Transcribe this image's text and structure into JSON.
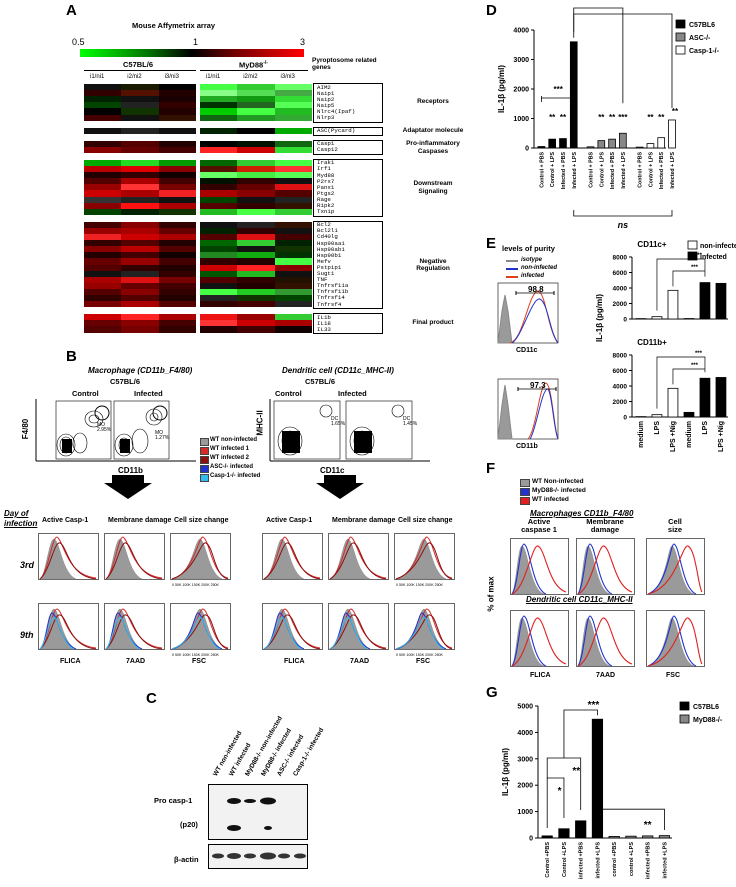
{
  "panel_labels": {
    "a": "A",
    "b": "B",
    "c": "C",
    "d": "D",
    "e": "E",
    "f": "F",
    "g": "G"
  },
  "panel_a": {
    "title": "Mouse Affymetrix array",
    "scale_min": "0.5",
    "scale_mid": "1",
    "scale_max": "3",
    "group_wt": "C57BL/6",
    "group_ko": "MyD88",
    "group_ko_sup": "-/-",
    "columns": [
      "i1/ni1",
      "i2/ni2",
      "i3/ni3",
      "i1/ni1",
      "i2/ni2",
      "i3/ni3"
    ],
    "side_title": "Pyroptosome related genes",
    "categories": [
      {
        "name": "Receptors",
        "genes": [
          "AIM2",
          "Naip1",
          "Naip2",
          "Naip5",
          "Nlrc4(Ipaf)",
          "Nlrp3"
        ],
        "colors": [
          [
            "#111",
            "#1a1a00",
            "#000",
            "#44ff44",
            "#33cc33",
            "#66ff66"
          ],
          [
            "#330000",
            "#551100",
            "#200",
            "#88ff88",
            "#55dd55",
            "#44aa44"
          ],
          [
            "#002200",
            "#111",
            "#1a0000",
            "#22aa22",
            "#119911",
            "#33dd33"
          ],
          [
            "#004400",
            "#222",
            "#330000",
            "#003300",
            "#226622",
            "#55ff55"
          ],
          [
            "#000",
            "#113300",
            "#220000",
            "#00cc00",
            "#44ff44",
            "#22bb22"
          ],
          [
            "#440000",
            "#111",
            "#331100",
            "#116611",
            "#229922",
            "#33aa33"
          ]
        ]
      },
      {
        "name": "Adaptator molecule",
        "genes": [
          "ASC(Pycard)"
        ],
        "colors": [
          [
            "#111",
            "#222",
            "#111",
            "#002200",
            "#000",
            "#00aa00"
          ]
        ]
      },
      {
        "name": "Pro-inflammatory\nCaspases",
        "genes": [
          "Casp1",
          "Casp12"
        ],
        "colors": [
          [
            "#330000",
            "#550000",
            "#220000",
            "#000",
            "#001100",
            "#116611"
          ],
          [
            "#880000",
            "#660000",
            "#440000",
            "#ff2222",
            "#cc0000",
            "#33dd33"
          ]
        ]
      },
      {
        "name": "Downstream\nSignaling",
        "genes": [
          "Irak1",
          "Irf1",
          "Myd88",
          "P2rx7",
          "Panx1",
          "Ptgs2",
          "Rage",
          "Ripk2",
          "Txnip"
        ],
        "colors": [
          [
            "#00aa00",
            "#22dd22",
            "#009900",
            "#006600",
            "#33cc33",
            "#44ff44"
          ],
          [
            "#bb0000",
            "#dd0000",
            "#880000",
            "#551100",
            "#cc2200",
            "#ff3333"
          ],
          [
            "#220000",
            "#330000",
            "#110000",
            "#66ff66",
            "#44ee44",
            "#55ff55"
          ],
          [
            "#550000",
            "#aa0000",
            "#440000",
            "#001100",
            "#330000",
            "#111"
          ],
          [
            "#990000",
            "#ff3333",
            "#770000",
            "#330000",
            "#660000",
            "#dd1111"
          ],
          [
            "#cc0000",
            "#aa0000",
            "#ee2222",
            "#aa0000",
            "#880000",
            "#550000"
          ],
          [
            "#333",
            "#222",
            "#111",
            "#004400",
            "#111",
            "#222"
          ],
          [
            "#880000",
            "#ff1111",
            "#aa0000",
            "#550000",
            "#330000",
            "#331100"
          ],
          [
            "#004400",
            "#002200",
            "#113300",
            "#22bb22",
            "#44ff44",
            "#33cc33"
          ]
        ]
      },
      {
        "name": "Negative\nRegulation",
        "genes": [
          "Bcl2",
          "Bcl2l1",
          "Cd40lg",
          "Hsp90aa1",
          "Hsp90ab1",
          "Hsp90b1",
          "Mefv",
          "Pstpip1",
          "Sugt1",
          "TNF",
          "Tnfrsf11a",
          "Tnfrsf11b",
          "Tnfrsf14",
          "Tnfrsf4"
        ],
        "colors": [
          [
            "#440000",
            "#880000",
            "#330000",
            "#111",
            "#222",
            "#331100"
          ],
          [
            "#990000",
            "#aa0000",
            "#660000",
            "#002200",
            "#330000",
            "#111"
          ],
          [
            "#ee2222",
            "#cc0000",
            "#aa0000",
            "#550000",
            "#dd1111",
            "#440000"
          ],
          [
            "#330000",
            "#550000",
            "#220000",
            "#006600",
            "#33cc33",
            "#002200"
          ],
          [
            "#880000",
            "#bb0000",
            "#550000",
            "#004400",
            "#111",
            "#113300"
          ],
          [
            "#220000",
            "#440000",
            "#110000",
            "#228822",
            "#11aa11",
            "#003300"
          ],
          [
            "#660000",
            "#990000",
            "#440000",
            "#330000",
            "#220000",
            "#44ff44"
          ],
          [
            "#550000",
            "#330000",
            "#220000",
            "#cc0000",
            "#ff2222",
            "#880000"
          ],
          [
            "#111",
            "#222",
            "#330000",
            "#005500",
            "#22bb22",
            "#111"
          ],
          [
            "#aa0000",
            "#dd1111",
            "#770000",
            "#550000",
            "#330000",
            "#221100"
          ],
          [
            "#990000",
            "#660000",
            "#440000",
            "#111",
            "#220000",
            "#331100"
          ],
          [
            "#550000",
            "#880000",
            "#330000",
            "#44ff44",
            "#22cc22",
            "#339933"
          ],
          [
            "#330000",
            "#550000",
            "#220000",
            "#222",
            "#113300",
            "#004400"
          ],
          [
            "#770000",
            "#aa0000",
            "#550000",
            "#330000",
            "#440000",
            "#222"
          ]
        ]
      },
      {
        "name": "Final product",
        "genes": [
          "IL1b",
          "IL18",
          "IL33"
        ],
        "colors": [
          [
            "#cc0000",
            "#ff2222",
            "#aa0000",
            "#ee1111",
            "#990000",
            "#33cc33"
          ],
          [
            "#660000",
            "#880000",
            "#440000",
            "#ff3333",
            "#cc0000",
            "#aa0000"
          ],
          [
            "#550000",
            "#770000",
            "#330000",
            "#220000",
            "#440000",
            "#110000"
          ]
        ]
      }
    ]
  },
  "panel_b": {
    "mac_title": "Macrophage (CD11b_F4/80)",
    "dc_title": "Dendritic cell (CD11c_MHC-II)",
    "strain": "C57BL/6",
    "control": "Control",
    "infected": "Infected",
    "mac_y": "F4/80",
    "mac_x": "CD11b",
    "dc_y": "MHC-II",
    "dc_x": "CD11c",
    "gate_mo": "MO",
    "gate_dc": "DC",
    "mac_ctrl_pct": "2.95%",
    "mac_inf_pct": "1.27%",
    "dc_ctrl_pct": "1.65%",
    "dc_inf_pct": "1.45%",
    "legend": [
      {
        "label": "WT non-infected",
        "color": "#9a9a9a"
      },
      {
        "label": "WT infected 1",
        "color": "#d42a2a"
      },
      {
        "label": "WT infected 2",
        "color": "#8b1010"
      },
      {
        "label": "ASC-/- infected",
        "color": "#2233cc"
      },
      {
        "label": "Casp-1-/- infected",
        "color": "#33bbee"
      }
    ],
    "day_label": "Day of infection",
    "day3": "3rd",
    "day9": "9th",
    "col_titles": [
      "Active Casp-1",
      "Membrane damage",
      "Cell size change"
    ],
    "x_titles": [
      "FLICA",
      "7AAD",
      "FSC"
    ],
    "fsc_ticks": "0   50K 100K 150K 200K 250K"
  },
  "panel_c": {
    "lanes": [
      "WT non-infected",
      "WT infected",
      "MyD88-/- non-infected",
      "MyD88-/- infected",
      "ASC-/- infected",
      "Casp-1-/- infected"
    ],
    "rows": [
      "Pro casp-1",
      "(p20)",
      "β-actin"
    ]
  },
  "panel_d": {
    "chart_data": {
      "type": "bar",
      "ylabel": "IL-1β (pg/ml)",
      "ylim": [
        0,
        4000
      ],
      "yticks": [
        0,
        1000,
        2000,
        3000,
        4000
      ],
      "categories": [
        "Control + PBS",
        "Control + LPS",
        "Infected + PBS",
        "Infected + LPS",
        "Control + PBS",
        "Control + LPS",
        "Infected + PBS",
        "Infected + LPS",
        "Control + PBS",
        "Control + LPS",
        "Infected + PBS",
        "Infected + LPS"
      ],
      "series": [
        {
          "name": "C57BL6",
          "color": "#000000",
          "values": [
            50,
            300,
            320,
            3600,
            null,
            null,
            null,
            null,
            null,
            null,
            null,
            null
          ]
        },
        {
          "name": "ASC-/-",
          "color": "#888888",
          "values": [
            null,
            null,
            null,
            null,
            40,
            250,
            300,
            500,
            null,
            null,
            null,
            null
          ]
        },
        {
          "name": "Casp-1-/-",
          "color": "#ffffff",
          "values": [
            null,
            null,
            null,
            null,
            null,
            null,
            null,
            null,
            30,
            150,
            350,
            950
          ]
        }
      ],
      "annotations": [
        "***",
        "**",
        "**",
        "**",
        "**",
        "***",
        "**",
        "**",
        "**",
        "ns"
      ]
    }
  },
  "panel_e": {
    "purity_title": "levels of purity",
    "purity_legend": [
      {
        "label": "isotype",
        "color": "#888888"
      },
      {
        "label": "non-infected",
        "color": "#2233cc"
      },
      {
        "label": "infected",
        "color": "#e04020"
      }
    ],
    "cd11c_pct": "98.8",
    "cd11b_pct": "97.3",
    "cd11c_x": "CD11c",
    "cd11b_x": "CD11b",
    "charts": [
      {
        "title": "CD11c+",
        "type": "bar",
        "ylabel": "IL-1β (pg/ml)",
        "ylim": [
          0,
          8000
        ],
        "yticks": [
          0,
          2000,
          4000,
          6000,
          8000
        ],
        "categories": [
          "medium",
          "LPS",
          "LPS +Nig",
          "medium",
          "LPS",
          "LPS +Nig"
        ],
        "values": [
          50,
          300,
          3700,
          60,
          4700,
          4600
        ],
        "fill": [
          "#fff",
          "#fff",
          "#fff",
          "#000",
          "#000",
          "#000"
        ],
        "annotations": [
          "***",
          "***"
        ]
      },
      {
        "title": "CD11b+",
        "type": "bar",
        "ylabel": "IL-1β (pg/ml)",
        "ylim": [
          0,
          8000
        ],
        "yticks": [
          0,
          2000,
          4000,
          6000,
          8000
        ],
        "categories": [
          "medium",
          "LPS",
          "LPS +Nig",
          "medium",
          "LPS",
          "LPS +Nig"
        ],
        "values": [
          50,
          300,
          3700,
          600,
          5000,
          5100
        ],
        "fill": [
          "#fff",
          "#fff",
          "#fff",
          "#000",
          "#000",
          "#000"
        ],
        "annotations": [
          "***",
          "***"
        ]
      }
    ],
    "legend": [
      {
        "label": "non-infected",
        "color": "#ffffff"
      },
      {
        "label": "infected",
        "color": "#000000"
      }
    ]
  },
  "panel_f": {
    "legend": [
      {
        "label": "WT Non-infected",
        "color": "#9a9a9a"
      },
      {
        "label": "MyD88-/- infected",
        "color": "#2233cc"
      },
      {
        "label": "WT infected",
        "color": "#e02020"
      }
    ],
    "mac_title": "Macrophages CD11b_F4/80",
    "dc_title": "Dendritic cell CD11c_MHC-II",
    "col_titles": [
      "Active\ncaspase 1",
      "Membrane\ndamage",
      "Cell\nsize"
    ],
    "ylabel": "% of max",
    "x_titles": [
      "FLICA",
      "7AAD",
      "FSC"
    ]
  },
  "panel_g": {
    "chart_data": {
      "type": "bar",
      "ylabel": "IL-1β (pg/ml)",
      "ylim": [
        0,
        5000
      ],
      "yticks": [
        0,
        1000,
        2000,
        3000,
        4000,
        5000
      ],
      "categories": [
        "Control +PBS",
        "Control +LPS",
        "infected +PBS",
        "infected +LPS",
        "control +PBS",
        "control +LPS",
        "infected +PBS",
        "infected +LPS"
      ],
      "series": [
        {
          "name": "C57BL6",
          "color": "#000000",
          "values": [
            80,
            350,
            650,
            4500,
            null,
            null,
            null,
            null
          ]
        },
        {
          "name": "MyD88-/-",
          "color": "#888888",
          "values": [
            null,
            null,
            null,
            null,
            60,
            70,
            80,
            90
          ]
        }
      ],
      "annotations": [
        "*",
        "**",
        "***",
        "**"
      ]
    }
  }
}
